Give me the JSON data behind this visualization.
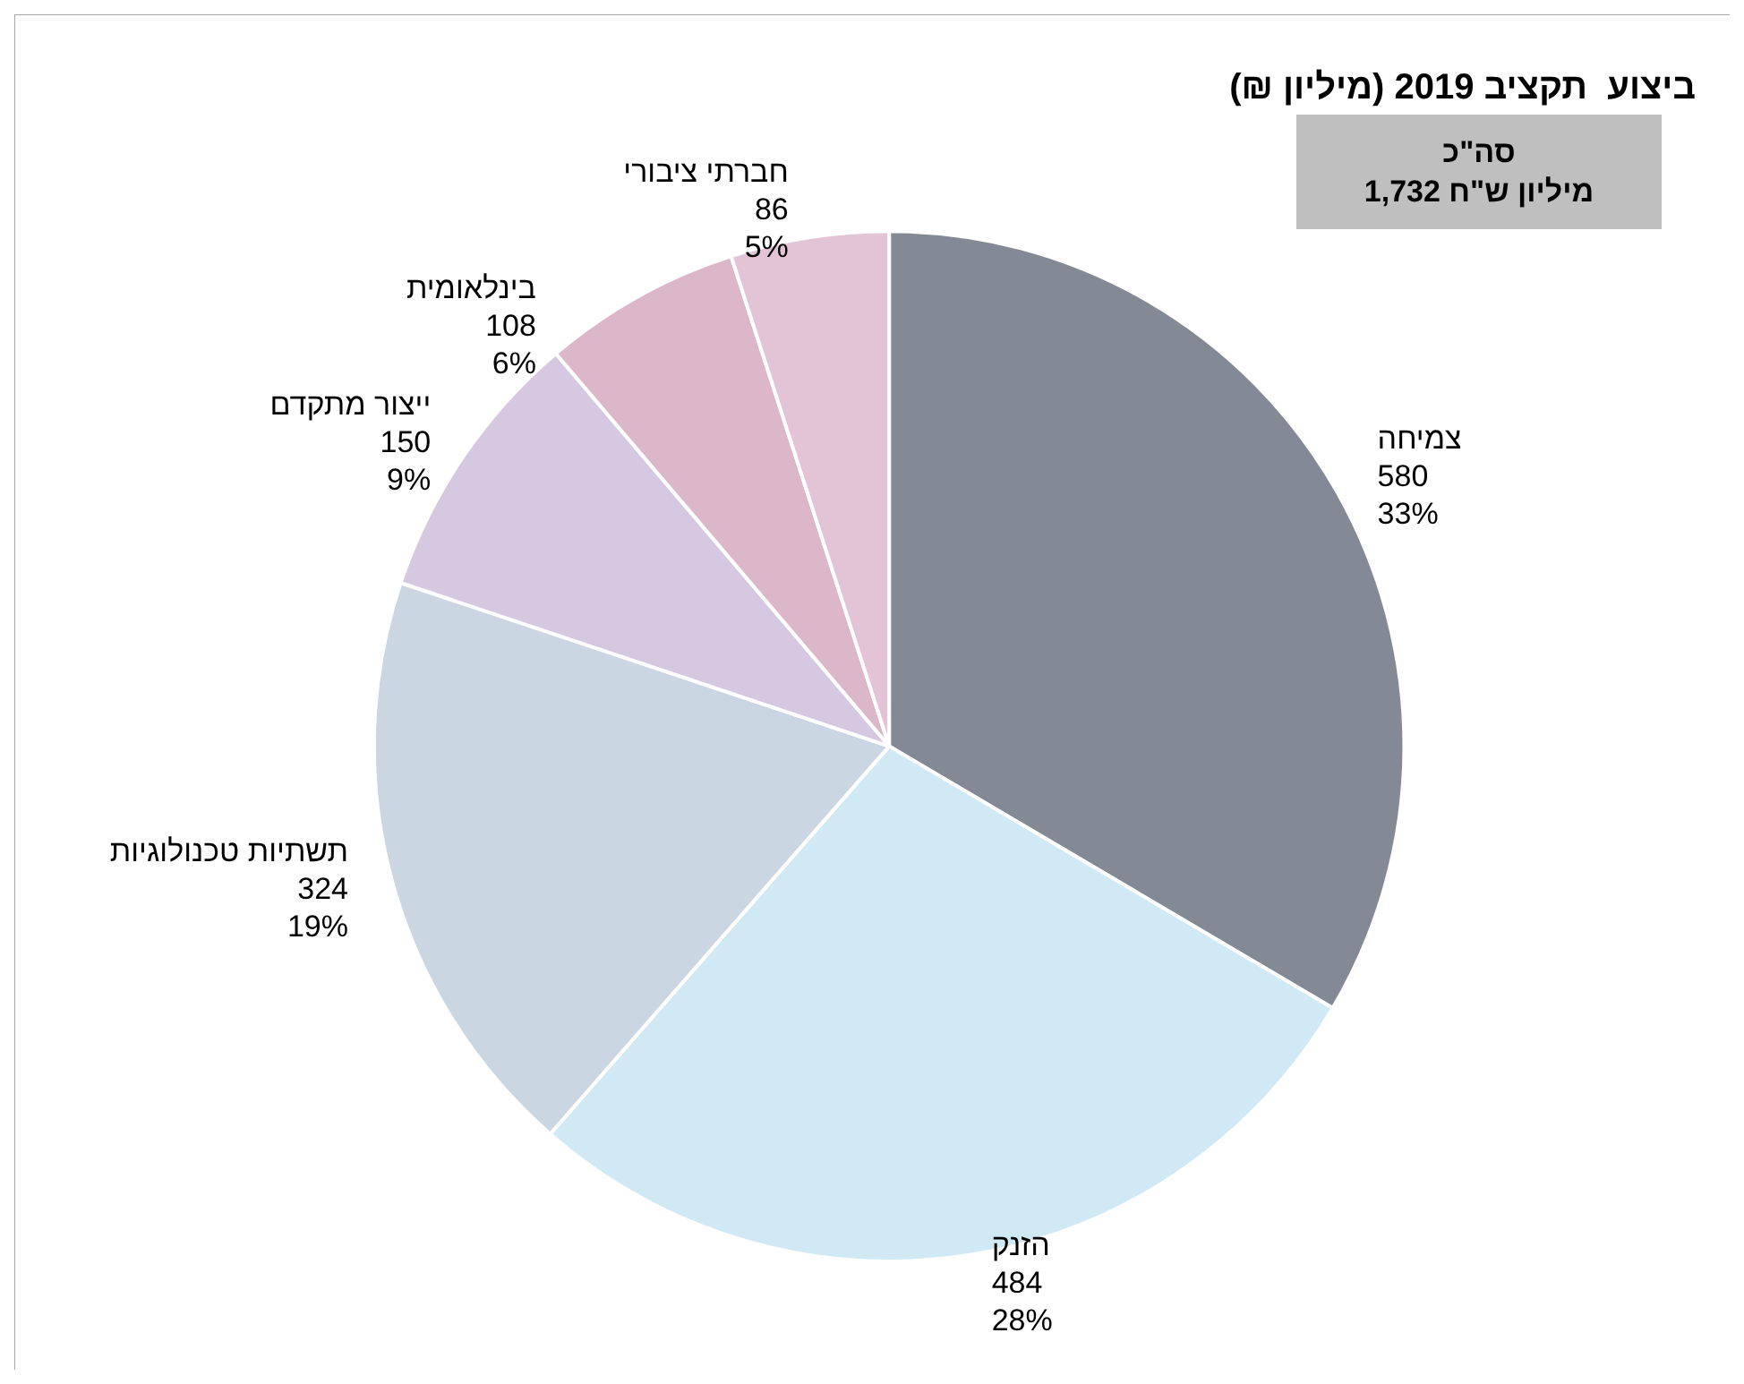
{
  "chart_data": {
    "type": "pie",
    "title": "ביצוע  תקציב 2019 (מיליון ₪)",
    "categories": [
      "צמיחה",
      "הזנק",
      "תשתיות טכנולוגיות",
      "ייצור מתקדם",
      "בינלאומית",
      "חברתי ציבורי"
    ],
    "values": [
      580,
      484,
      324,
      150,
      108,
      86
    ],
    "colors": [
      "#838a96",
      "#d0e9f5",
      "#cad6e2",
      "#d5c8e0",
      "#dbb7c9",
      "#e3c4d6"
    ],
    "value_labels": [
      "580\n33%",
      "484\n28%",
      "324\n19%",
      "150\n9%",
      "108\n6%",
      "86\n5%"
    ],
    "annotations": [
      "סה\"כ\n1,732 מיליון ש\"ח"
    ],
    "legend": false
  }
}
